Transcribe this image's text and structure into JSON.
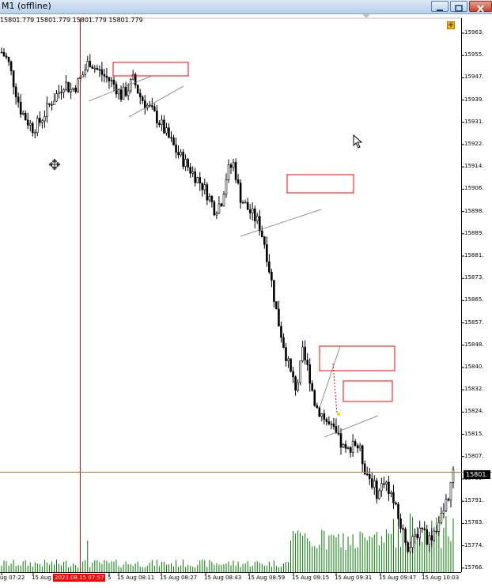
{
  "window": {
    "title": "M1 (offline)"
  },
  "crosshair_readout": "15801.779 15801.779 15801.779 15801.779",
  "current_price_label": "15801.",
  "crosshair_time_label": "2023.08.15 07:57",
  "icons": {
    "autoscroll": "autoscroll-icon",
    "move": "move-cursor-icon",
    "pointer": "pointer-cursor-icon"
  },
  "colors": {
    "bull_bear": "#000000",
    "volume": "#008000",
    "crosshair_line": "#ff0000",
    "zone": "#ff0000",
    "price_line": "#c07030"
  },
  "chart_data": {
    "type": "candlestick",
    "symbol_timeframe": "M1",
    "y_ticks": [
      "15963.",
      "15955.",
      "15947.",
      "15939.",
      "15931.",
      "15922.",
      "15914.",
      "15906.",
      "15898.",
      "15889.",
      "15881.",
      "15873.",
      "15865.",
      "15857.",
      "15848.",
      "15840.",
      "15832.",
      "15824.",
      "15815.",
      "15807.",
      "15799.",
      "15791.",
      "15783.",
      "15774.",
      "15766."
    ],
    "x_ticks": [
      "ug 07:22",
      "15 Aug",
      "5",
      "15 Aug 08:11",
      "15 Aug 08:27",
      "15 Aug 08:43",
      "15 Aug 08:59",
      "15 Aug 09:15",
      "15 Aug 09:31",
      "15 Aug 09:47",
      "15 Aug 10:03"
    ],
    "ylim": [
      15766,
      15968
    ],
    "current_price": 15801.779,
    "close_path": [
      15956,
      15953,
      15944,
      15935,
      15931,
      15928,
      15930,
      15934,
      15938,
      15941,
      15945,
      15942,
      15944,
      15948,
      15953,
      15950,
      15948,
      15946,
      15944,
      15940,
      15942,
      15946,
      15940,
      15937,
      15934,
      15931,
      15927,
      15923,
      15919,
      15916,
      15913,
      15910,
      15907,
      15903,
      15898,
      15901,
      15912,
      15915,
      15903,
      15899,
      15896,
      15893,
      15885,
      15872,
      15858,
      15848,
      15838,
      15832,
      15845,
      15838,
      15826,
      15823,
      15819,
      15816,
      15812,
      15808,
      15813,
      15810,
      15802,
      15798,
      15793,
      15799,
      15794,
      15786,
      15779,
      15773,
      15778,
      15782,
      15776,
      15780,
      15784,
      15791,
      15800
    ]
  }
}
